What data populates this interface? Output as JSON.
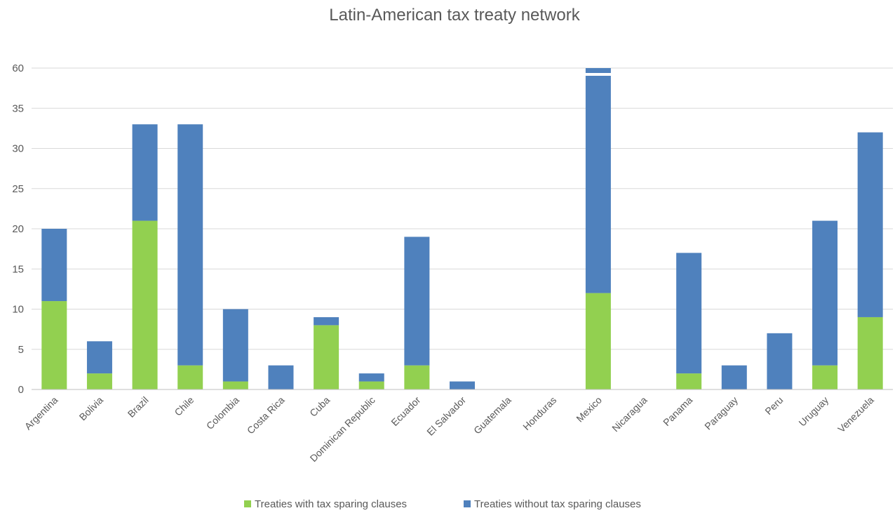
{
  "chart_data": {
    "type": "bar",
    "stacked": true,
    "title": "Latin-American tax treaty network",
    "xlabel": "",
    "ylabel": "",
    "y_tick_labels": [
      "0",
      "5",
      "10",
      "15",
      "20",
      "25",
      "30",
      "35",
      "60"
    ],
    "axis_break": {
      "between": [
        35,
        60
      ]
    },
    "grid": true,
    "legend": "bottom",
    "categories": [
      "Argentina",
      "Bolivia",
      "Brazil",
      "Chile",
      "Colombia",
      "Costa Rica",
      "Cuba",
      "Dominican Republic",
      "Ecuador",
      "El Salvador",
      "Guatemala",
      "Honduras",
      "Mexico",
      "Nicaragua",
      "Panama",
      "Paraguay",
      "Peru",
      "Uruguay",
      "Venezuela"
    ],
    "series": [
      {
        "name": "Treaties with tax sparing clauses",
        "color": "#92d050",
        "values": [
          11,
          2,
          21,
          3,
          1,
          0,
          8,
          1,
          3,
          0,
          0,
          0,
          12,
          0,
          2,
          0,
          0,
          3,
          9
        ]
      },
      {
        "name": "Treaties without tax sparing clauses",
        "color": "#4f81bd",
        "values": [
          9,
          4,
          12,
          30,
          9,
          3,
          1,
          1,
          16,
          1,
          0,
          0,
          48,
          0,
          15,
          3,
          7,
          18,
          23
        ]
      }
    ]
  }
}
